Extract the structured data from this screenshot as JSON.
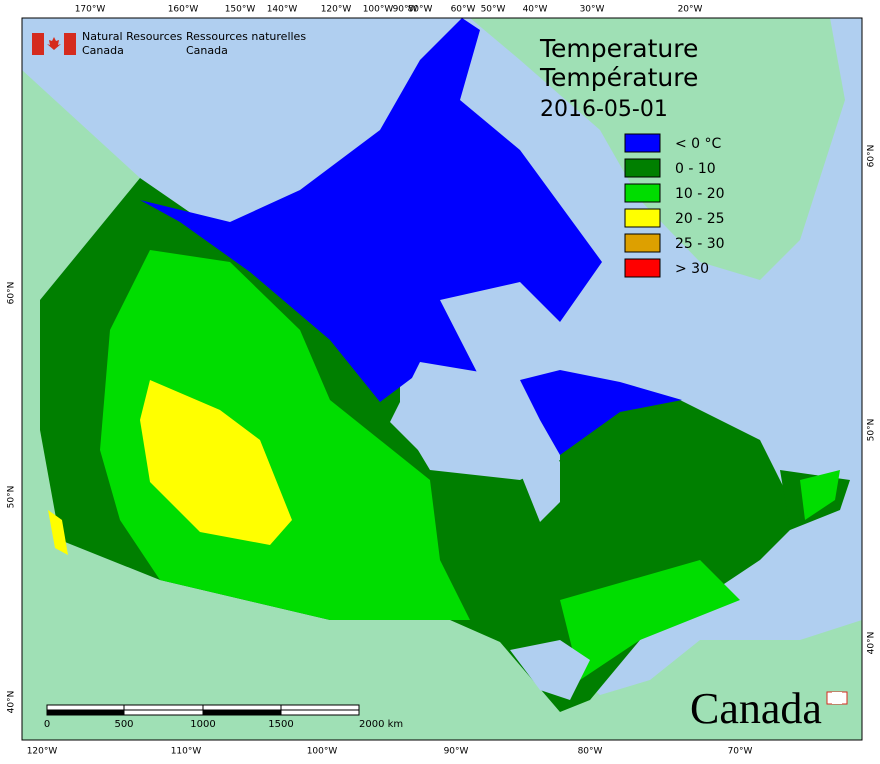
{
  "header": {
    "agency_en": [
      "Natural Resources",
      "Canada"
    ],
    "agency_fr": [
      "Ressources naturelles",
      "Canada"
    ]
  },
  "title": [
    "Temperature",
    "Température",
    "2016-05-01"
  ],
  "legend": [
    {
      "label": "< 0 °C",
      "color": "#0000ff"
    },
    {
      "label": "0 - 10",
      "color": "#007f00"
    },
    {
      "label": "10 - 20",
      "color": "#00dd00"
    },
    {
      "label": "20 - 25",
      "color": "#ffff00"
    },
    {
      "label": "25 - 30",
      "color": "#dda000"
    },
    {
      "label": "> 30",
      "color": "#ff0000"
    }
  ],
  "graticule": {
    "top": [
      "170°W",
      "160°W",
      "150°W",
      "140°W",
      "120°W",
      "100°W",
      "90°W",
      "80°W",
      "60°W",
      "50°W",
      "40°W",
      "30°W",
      "20°W"
    ],
    "bottom": [
      "120°W",
      "110°W",
      "100°W",
      "90°W",
      "80°W",
      "70°W"
    ],
    "left": [
      "60°N",
      "50°N",
      "40°N"
    ],
    "right": [
      "60°N",
      "50°N",
      "40°N"
    ]
  },
  "scale_bar": [
    "0",
    "500",
    "1000",
    "1500",
    "2000 km"
  ],
  "wordmark": "Canada"
}
